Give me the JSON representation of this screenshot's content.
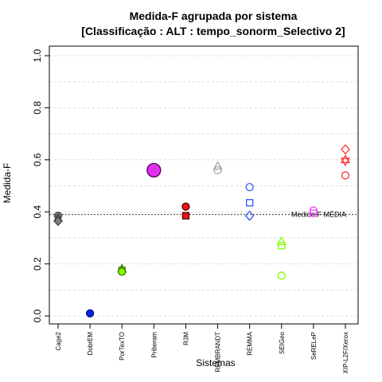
{
  "chart_data": {
    "type": "scatter",
    "title": "Medida-F agrupada por sistema",
    "subtitle": "[Classificação : ALT : tempo_sonorm_Selectivo 2]",
    "xlabel": "Sistemas",
    "ylabel": "Medida-F",
    "ylim": [
      0,
      1.0
    ],
    "yticks": [
      "0.0",
      "0.2",
      "0.4",
      "0.6",
      "0.8",
      "1.0"
    ],
    "grid": "horizontal dotted",
    "categories": [
      "Cage2",
      "DobrEM",
      "PorTexTO",
      "Priberam",
      "R3M",
      "REMBRANDT",
      "REMMA",
      "SEIGeo",
      "SeRELeP",
      "XIP-L2F/Xerox"
    ],
    "reference_line": {
      "label": "Medida-F MÉDIA",
      "value": 0.39
    },
    "points": [
      {
        "category": "Cage2",
        "value": 0.385,
        "shape": "circle",
        "fill": "#7f7f7f",
        "stroke": "#404040"
      },
      {
        "category": "Cage2",
        "value": 0.375,
        "shape": "triangle",
        "fill": "#7f7f7f",
        "stroke": "#404040"
      },
      {
        "category": "Cage2",
        "value": 0.365,
        "shape": "diamond",
        "fill": "#7f7f7f",
        "stroke": "#404040"
      },
      {
        "category": "DobrEM",
        "value": 0.01,
        "shape": "circle",
        "fill": "#0022dd",
        "stroke": "#001088"
      },
      {
        "category": "PorTexTO",
        "value": 0.18,
        "shape": "triangle",
        "fill": "#7fff00",
        "stroke": "#3a8000"
      },
      {
        "category": "PorTexTO",
        "value": 0.175,
        "shape": "square",
        "fill": "#7fff00",
        "stroke": "#3a8000"
      },
      {
        "category": "PorTexTO",
        "value": 0.17,
        "shape": "circle",
        "fill": "#7fff00",
        "stroke": "#3a8000"
      },
      {
        "category": "Priberam",
        "value": 0.56,
        "shape": "circle-large",
        "fill": "#dd33ee",
        "stroke": "#550055"
      },
      {
        "category": "R3M",
        "value": 0.42,
        "shape": "circle",
        "fill": "#ee1111",
        "stroke": "#550000"
      },
      {
        "category": "R3M",
        "value": 0.385,
        "shape": "square",
        "fill": "#ee1111",
        "stroke": "#550000"
      },
      {
        "category": "REMBRANDT",
        "value": 0.575,
        "shape": "triangle",
        "fill": "none",
        "stroke": "#a6a6a6"
      },
      {
        "category": "REMBRANDT",
        "value": 0.56,
        "shape": "circle",
        "fill": "none",
        "stroke": "#a6a6a6"
      },
      {
        "category": "REMMA",
        "value": 0.495,
        "shape": "circle",
        "fill": "none",
        "stroke": "#3355ff"
      },
      {
        "category": "REMMA",
        "value": 0.435,
        "shape": "square",
        "fill": "none",
        "stroke": "#3355ff"
      },
      {
        "category": "REMMA",
        "value": 0.385,
        "shape": "diamond",
        "fill": "none",
        "stroke": "#3355ff"
      },
      {
        "category": "SEIGeo",
        "value": 0.285,
        "shape": "triangle",
        "fill": "none",
        "stroke": "#7fff00"
      },
      {
        "category": "SEIGeo",
        "value": 0.27,
        "shape": "square",
        "fill": "none",
        "stroke": "#7fff00"
      },
      {
        "category": "SEIGeo",
        "value": 0.155,
        "shape": "circle",
        "fill": "none",
        "stroke": "#7fff00"
      },
      {
        "category": "SeRELeP",
        "value": 0.405,
        "shape": "circle",
        "fill": "none",
        "stroke": "#ee44ff"
      },
      {
        "category": "SeRELeP",
        "value": 0.395,
        "shape": "square",
        "fill": "none",
        "stroke": "#ee44ff"
      },
      {
        "category": "XIP-L2F/Xerox",
        "value": 0.64,
        "shape": "diamond",
        "fill": "none",
        "stroke": "#ff3333"
      },
      {
        "category": "XIP-L2F/Xerox",
        "value": 0.6,
        "shape": "triangle",
        "fill": "none",
        "stroke": "#ff3333"
      },
      {
        "category": "XIP-L2F/Xerox",
        "value": 0.595,
        "shape": "triangle-down",
        "fill": "none",
        "stroke": "#ff3333"
      },
      {
        "category": "XIP-L2F/Xerox",
        "value": 0.54,
        "shape": "circle",
        "fill": "none",
        "stroke": "#ff3333"
      }
    ]
  }
}
